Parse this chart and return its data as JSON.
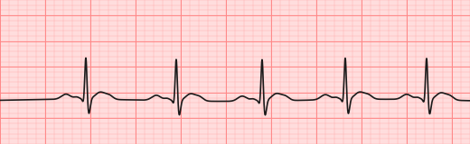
{
  "background_color": "#FFDDDD",
  "grid_minor_color": "#FFAAAA",
  "grid_major_color": "#FF8888",
  "ecg_color": "#1a1a1a",
  "ecg_linewidth": 1.2,
  "fig_width": 5.2,
  "fig_height": 1.6,
  "dpi": 100,
  "qrs_positions": [
    0.95,
    1.95,
    2.9,
    3.82,
    4.72
  ],
  "ylim": [
    -1.0,
    1.8
  ],
  "xlim": [
    0.0,
    5.2
  ],
  "minor_step": 0.1,
  "major_step": 0.5
}
